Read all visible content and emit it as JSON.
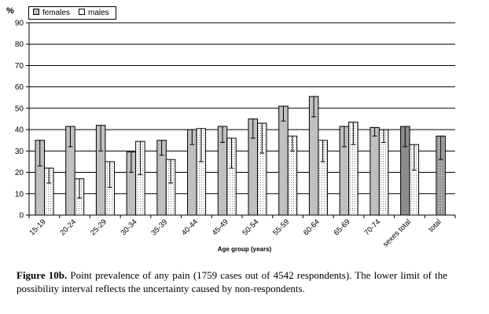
{
  "chart_data": {
    "type": "bar",
    "unit_label": "%",
    "xlabel": "Age group (years)",
    "ylabel": "",
    "ylim": [
      0,
      90
    ],
    "yticks": [
      0,
      10,
      20,
      30,
      40,
      50,
      60,
      70,
      80,
      90
    ],
    "grid": true,
    "legend_position": "top-left",
    "categories": [
      "15-19",
      "20-24",
      "25-29",
      "30-34",
      "35-39",
      "40-44",
      "45-49",
      "50-54",
      "55-59",
      "60-64",
      "65-69",
      "70-74",
      "sexes total",
      "total"
    ],
    "series": [
      {
        "name": "females",
        "color": "#c0c0c0",
        "values": [
          35,
          41.5,
          42,
          29.5,
          35,
          40,
          41.5,
          45,
          51,
          55.5,
          41.5,
          41,
          41.5,
          null
        ],
        "lower": [
          23,
          32,
          30,
          20,
          28,
          33,
          34,
          36,
          44,
          46,
          32,
          37,
          32,
          null
        ]
      },
      {
        "name": "males",
        "color": "#ffffff",
        "pattern": "dotted",
        "values": [
          22,
          17,
          25,
          34.5,
          26,
          40.5,
          36,
          43,
          37,
          35,
          43.5,
          40,
          33,
          null
        ],
        "lower": [
          15,
          8,
          13,
          19,
          15,
          25,
          22,
          29,
          30,
          25,
          33,
          34,
          21,
          null
        ]
      },
      {
        "name": "total",
        "values": [
          null,
          null,
          null,
          null,
          null,
          null,
          null,
          null,
          null,
          null,
          null,
          null,
          null,
          37
        ],
        "lower": [
          null,
          null,
          null,
          null,
          null,
          null,
          null,
          null,
          null,
          null,
          null,
          null,
          null,
          26
        ]
      }
    ]
  },
  "caption": {
    "label": "Figure 10b.",
    "text": " Point prevalence of any pain (1759 cases out of 4542 respondents). The lower limit of the possibility interval reflects the uncertainty caused by non-respondents."
  }
}
